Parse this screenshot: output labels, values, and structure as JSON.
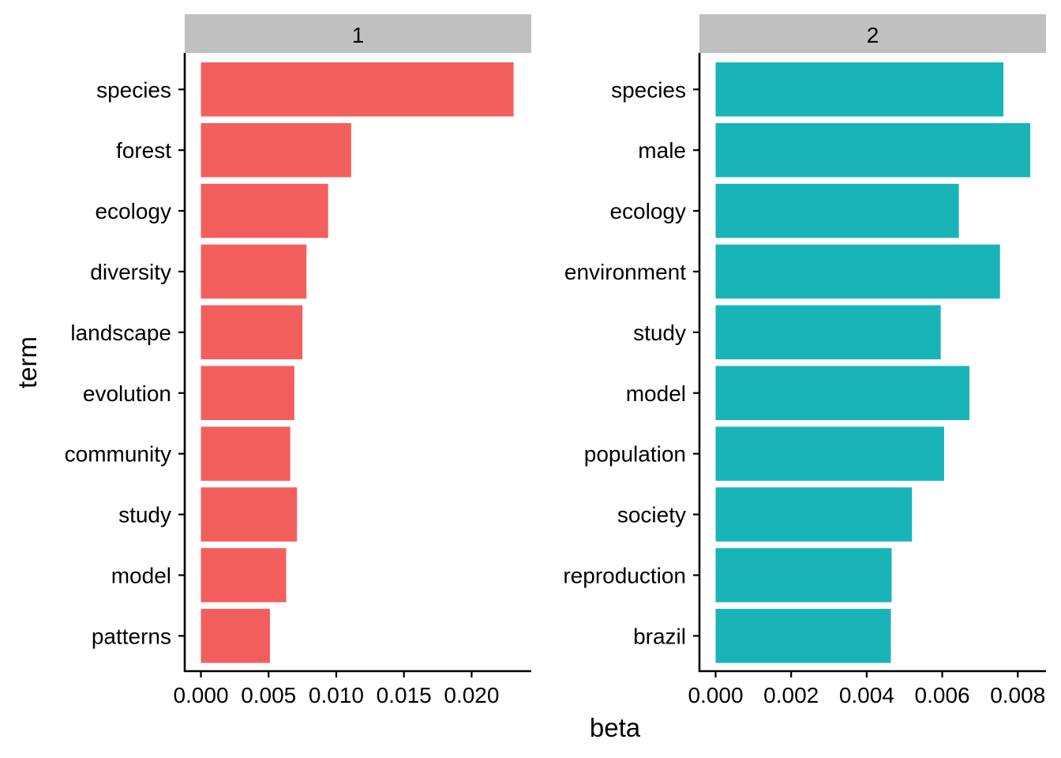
{
  "chart_data": {
    "type": "bar",
    "orientation": "horizontal",
    "xlabel": "beta",
    "ylabel": "term",
    "legend": "none",
    "grid": false,
    "panels": [
      {
        "facet_label": "1",
        "color": "#F35F5C",
        "xlim": [
          0,
          0.0233
        ],
        "xticks": [
          "0.000",
          "0.005",
          "0.010",
          "0.015",
          "0.020"
        ],
        "xtick_values": [
          0,
          0.005,
          0.01,
          0.015,
          0.02
        ],
        "categories": [
          "species",
          "forest",
          "ecology",
          "diversity",
          "landscape",
          "evolution",
          "community",
          "study",
          "model",
          "patterns"
        ],
        "values": [
          0.0231,
          0.0111,
          0.0094,
          0.0078,
          0.0075,
          0.0069,
          0.0066,
          0.0071,
          0.0063,
          0.0051
        ]
      },
      {
        "facet_label": "2",
        "color": "#19B4B8",
        "xlim": [
          0,
          0.00835
        ],
        "xticks": [
          "0.000",
          "0.002",
          "0.004",
          "0.006",
          "0.008"
        ],
        "xtick_values": [
          0,
          0.002,
          0.004,
          0.006,
          0.008
        ],
        "categories": [
          "species",
          "male",
          "ecology",
          "environment",
          "study",
          "model",
          "population",
          "society",
          "reproduction",
          "brazil"
        ],
        "values": [
          0.00762,
          0.00833,
          0.00644,
          0.00753,
          0.00596,
          0.00672,
          0.00605,
          0.0052,
          0.00466,
          0.00464
        ]
      }
    ]
  }
}
